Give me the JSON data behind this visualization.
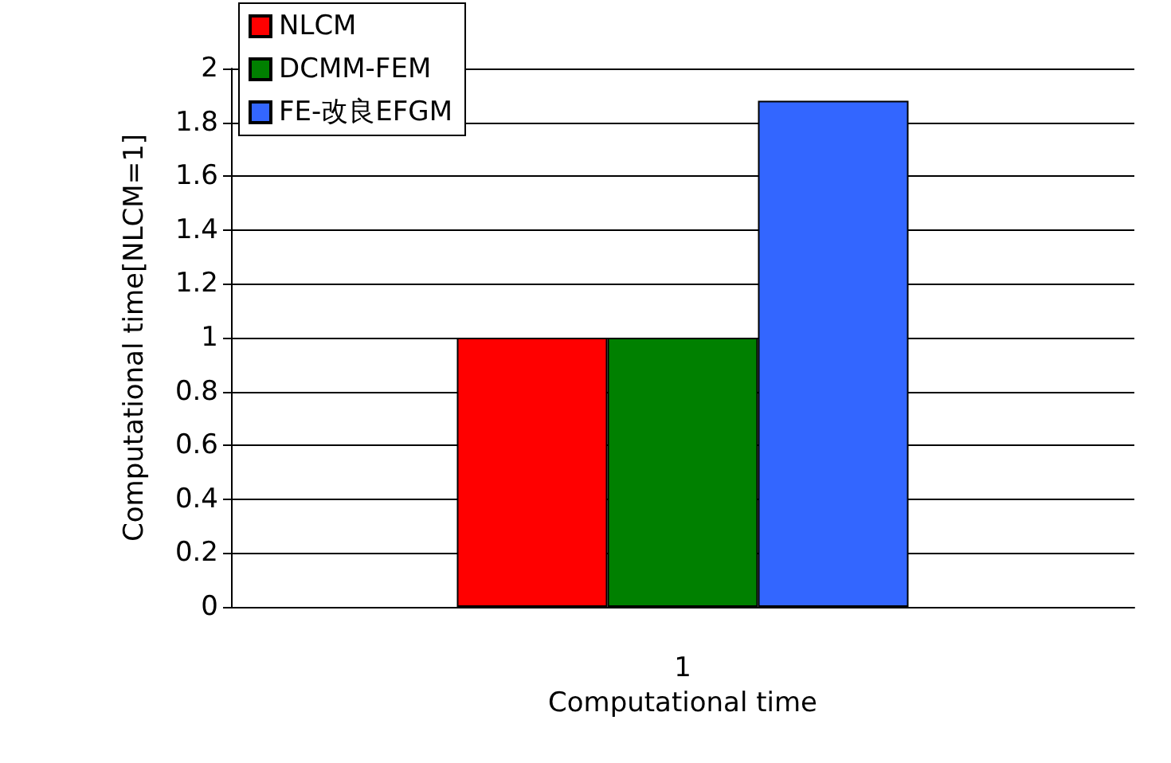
{
  "chart_data": {
    "type": "bar",
    "xlabel": "Computational time",
    "ylabel": "Computational time[NLCM=1]",
    "categories": [
      "1"
    ],
    "series": [
      {
        "name": "NLCM",
        "color": "#ff0000",
        "values": [
          1
        ]
      },
      {
        "name": "DCMM-FEM",
        "color": "#008000",
        "values": [
          1
        ]
      },
      {
        "name": "FE-改良EFGM",
        "color": "#3366ff",
        "values": [
          1.88
        ]
      }
    ],
    "ylim": [
      0,
      2
    ],
    "yticks": [
      0,
      0.2,
      0.4,
      0.6,
      0.8,
      1,
      1.2,
      1.4,
      1.6,
      1.8,
      2
    ],
    "grid": "y",
    "legend": "top left"
  }
}
